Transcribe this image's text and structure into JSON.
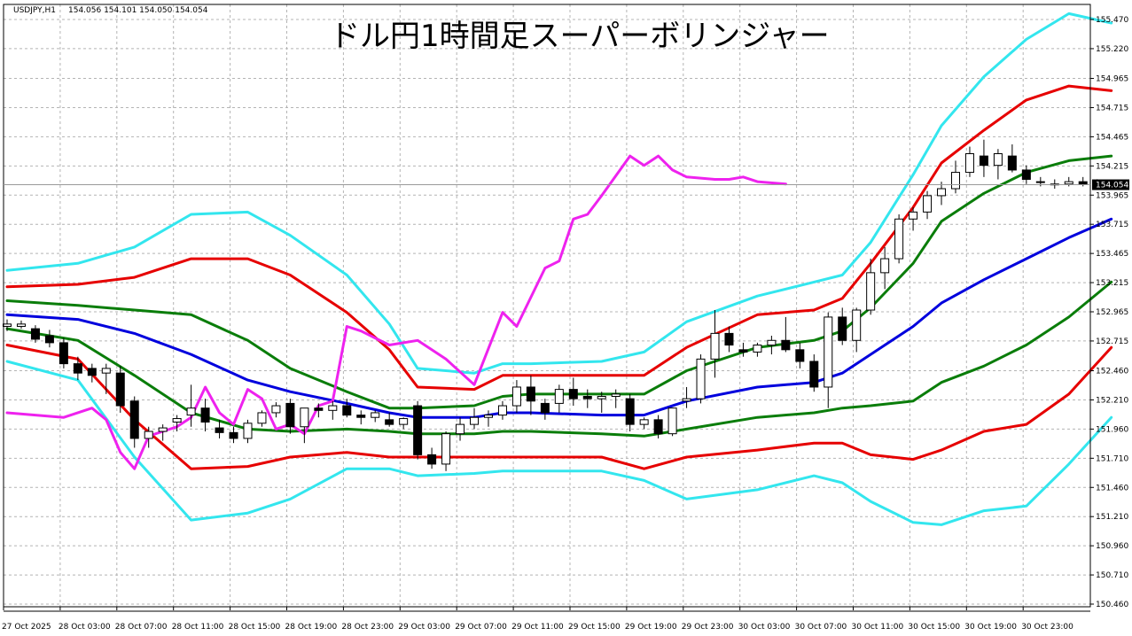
{
  "header": {
    "symbol": "USDJPY,H1",
    "ohlc": "154.056 154.101 154.050 154.054"
  },
  "title": "ドル円1時間足スーパーボリンジャー",
  "current_price": {
    "label": "154.054",
    "value": 154.054
  },
  "colors": {
    "background": "#ffffff",
    "grid": "#b4b4b4",
    "candle": "#000000",
    "sma": "#0000dd",
    "band_1sigma": "#0a7d0a",
    "band_2sigma": "#e60000",
    "band_3sigma": "#33e6ee",
    "chikou": "#ee22ee",
    "price_tag_bg": "#000000"
  },
  "chart_data": {
    "type": "line",
    "ylim": [
      150.35,
      155.58
    ],
    "y_ticks": [
      "155.470",
      "155.220",
      "154.965",
      "154.715",
      "154.465",
      "154.215",
      "153.965",
      "153.715",
      "153.465",
      "153.215",
      "152.965",
      "152.715",
      "152.460",
      "152.210",
      "151.960",
      "151.710",
      "151.460",
      "151.210",
      "150.960",
      "150.710",
      "150.460"
    ],
    "x_ticks": [
      "27 Oct 2025",
      "28 Oct 03:00",
      "28 Oct 07:00",
      "28 Oct 11:00",
      "28 Oct 15:00",
      "28 Oct 19:00",
      "28 Oct 23:00",
      "29 Oct 03:00",
      "29 Oct 07:00",
      "29 Oct 11:00",
      "29 Oct 15:00",
      "29 Oct 19:00",
      "29 Oct 23:00",
      "30 Oct 03:00",
      "30 Oct 07:00",
      "30 Oct 11:00",
      "30 Oct 15:00",
      "30 Oct 19:00",
      "30 Oct 23:00"
    ],
    "candles": [
      {
        "o": 152.84,
        "h": 152.9,
        "l": 152.8,
        "c": 152.86
      },
      {
        "o": 152.84,
        "h": 152.89,
        "l": 152.82,
        "c": 152.86
      },
      {
        "o": 152.82,
        "h": 152.85,
        "l": 152.7,
        "c": 152.73
      },
      {
        "o": 152.76,
        "h": 152.81,
        "l": 152.66,
        "c": 152.7
      },
      {
        "o": 152.7,
        "h": 152.74,
        "l": 152.48,
        "c": 152.52
      },
      {
        "o": 152.52,
        "h": 152.58,
        "l": 152.38,
        "c": 152.44
      },
      {
        "o": 152.48,
        "h": 152.52,
        "l": 152.36,
        "c": 152.42
      },
      {
        "o": 152.44,
        "h": 152.52,
        "l": 152.26,
        "c": 152.48
      },
      {
        "o": 152.44,
        "h": 152.5,
        "l": 152.1,
        "c": 152.16
      },
      {
        "o": 152.2,
        "h": 152.24,
        "l": 151.8,
        "c": 151.88
      },
      {
        "o": 151.88,
        "h": 151.98,
        "l": 151.8,
        "c": 151.94
      },
      {
        "o": 151.94,
        "h": 152.0,
        "l": 151.86,
        "c": 151.97
      },
      {
        "o": 152.02,
        "h": 152.08,
        "l": 151.94,
        "c": 152.05
      },
      {
        "o": 152.08,
        "h": 152.34,
        "l": 151.98,
        "c": 152.14
      },
      {
        "o": 152.14,
        "h": 152.22,
        "l": 151.94,
        "c": 152.02
      },
      {
        "o": 151.97,
        "h": 152.04,
        "l": 151.88,
        "c": 151.93
      },
      {
        "o": 151.93,
        "h": 151.98,
        "l": 151.84,
        "c": 151.88
      },
      {
        "o": 151.88,
        "h": 152.04,
        "l": 151.84,
        "c": 152.01
      },
      {
        "o": 152.01,
        "h": 152.12,
        "l": 151.98,
        "c": 152.1
      },
      {
        "o": 152.1,
        "h": 152.19,
        "l": 152.06,
        "c": 152.16
      },
      {
        "o": 152.18,
        "h": 152.22,
        "l": 151.92,
        "c": 151.98
      },
      {
        "o": 151.98,
        "h": 152.14,
        "l": 151.84,
        "c": 152.14
      },
      {
        "o": 152.14,
        "h": 152.18,
        "l": 152.06,
        "c": 152.12
      },
      {
        "o": 152.12,
        "h": 152.2,
        "l": 152.04,
        "c": 152.16
      },
      {
        "o": 152.16,
        "h": 152.22,
        "l": 152.06,
        "c": 152.08
      },
      {
        "o": 152.08,
        "h": 152.12,
        "l": 152.0,
        "c": 152.06
      },
      {
        "o": 152.06,
        "h": 152.12,
        "l": 152.02,
        "c": 152.1
      },
      {
        "o": 152.04,
        "h": 152.1,
        "l": 151.98,
        "c": 152.0
      },
      {
        "o": 152.0,
        "h": 152.06,
        "l": 151.96,
        "c": 152.05
      },
      {
        "o": 152.16,
        "h": 152.2,
        "l": 151.7,
        "c": 151.74
      },
      {
        "o": 151.74,
        "h": 151.8,
        "l": 151.62,
        "c": 151.66
      },
      {
        "o": 151.66,
        "h": 151.94,
        "l": 151.6,
        "c": 151.92
      },
      {
        "o": 151.92,
        "h": 152.06,
        "l": 151.86,
        "c": 152.0
      },
      {
        "o": 152.0,
        "h": 152.14,
        "l": 151.96,
        "c": 152.06
      },
      {
        "o": 152.06,
        "h": 152.12,
        "l": 151.98,
        "c": 152.08
      },
      {
        "o": 152.08,
        "h": 152.2,
        "l": 152.04,
        "c": 152.16
      },
      {
        "o": 152.16,
        "h": 152.38,
        "l": 152.1,
        "c": 152.32
      },
      {
        "o": 152.32,
        "h": 152.42,
        "l": 152.08,
        "c": 152.2
      },
      {
        "o": 152.18,
        "h": 152.22,
        "l": 152.04,
        "c": 152.1
      },
      {
        "o": 152.18,
        "h": 152.34,
        "l": 152.1,
        "c": 152.3
      },
      {
        "o": 152.3,
        "h": 152.4,
        "l": 152.16,
        "c": 152.22
      },
      {
        "o": 152.24,
        "h": 152.3,
        "l": 152.14,
        "c": 152.22
      },
      {
        "o": 152.22,
        "h": 152.28,
        "l": 152.1,
        "c": 152.24
      },
      {
        "o": 152.24,
        "h": 152.3,
        "l": 152.14,
        "c": 152.26
      },
      {
        "o": 152.22,
        "h": 152.26,
        "l": 151.94,
        "c": 152.0
      },
      {
        "o": 152.0,
        "h": 152.06,
        "l": 151.96,
        "c": 152.04
      },
      {
        "o": 152.04,
        "h": 152.08,
        "l": 151.88,
        "c": 151.92
      },
      {
        "o": 151.92,
        "h": 152.14,
        "l": 151.9,
        "c": 152.14
      },
      {
        "o": 152.2,
        "h": 152.32,
        "l": 152.14,
        "c": 152.22
      },
      {
        "o": 152.22,
        "h": 152.6,
        "l": 152.18,
        "c": 152.56
      },
      {
        "o": 152.56,
        "h": 152.98,
        "l": 152.4,
        "c": 152.78
      },
      {
        "o": 152.78,
        "h": 152.84,
        "l": 152.62,
        "c": 152.68
      },
      {
        "o": 152.64,
        "h": 152.7,
        "l": 152.58,
        "c": 152.62
      },
      {
        "o": 152.62,
        "h": 152.7,
        "l": 152.58,
        "c": 152.68
      },
      {
        "o": 152.68,
        "h": 152.76,
        "l": 152.6,
        "c": 152.72
      },
      {
        "o": 152.72,
        "h": 152.92,
        "l": 152.62,
        "c": 152.64
      },
      {
        "o": 152.64,
        "h": 152.7,
        "l": 152.48,
        "c": 152.54
      },
      {
        "o": 152.54,
        "h": 152.6,
        "l": 152.28,
        "c": 152.32
      },
      {
        "o": 152.32,
        "h": 152.96,
        "l": 152.14,
        "c": 152.92
      },
      {
        "o": 152.92,
        "h": 153.0,
        "l": 152.68,
        "c": 152.72
      },
      {
        "o": 152.72,
        "h": 153.0,
        "l": 152.62,
        "c": 152.98
      },
      {
        "o": 152.98,
        "h": 153.42,
        "l": 152.94,
        "c": 153.3
      },
      {
        "o": 153.3,
        "h": 153.52,
        "l": 153.16,
        "c": 153.42
      },
      {
        "o": 153.42,
        "h": 153.8,
        "l": 153.38,
        "c": 153.76
      },
      {
        "o": 153.76,
        "h": 153.86,
        "l": 153.66,
        "c": 153.82
      },
      {
        "o": 153.82,
        "h": 154.0,
        "l": 153.76,
        "c": 153.96
      },
      {
        "o": 153.96,
        "h": 154.08,
        "l": 153.88,
        "c": 154.02
      },
      {
        "o": 154.02,
        "h": 154.26,
        "l": 153.98,
        "c": 154.16
      },
      {
        "o": 154.16,
        "h": 154.38,
        "l": 154.12,
        "c": 154.32
      },
      {
        "o": 154.3,
        "h": 154.44,
        "l": 154.12,
        "c": 154.22
      },
      {
        "o": 154.22,
        "h": 154.36,
        "l": 154.1,
        "c": 154.32
      },
      {
        "o": 154.3,
        "h": 154.4,
        "l": 154.16,
        "c": 154.18
      },
      {
        "o": 154.18,
        "h": 154.22,
        "l": 154.06,
        "c": 154.1
      },
      {
        "o": 154.08,
        "h": 154.12,
        "l": 154.04,
        "c": 154.08
      },
      {
        "o": 154.06,
        "h": 154.1,
        "l": 154.02,
        "c": 154.06
      },
      {
        "o": 154.06,
        "h": 154.12,
        "l": 154.04,
        "c": 154.08
      },
      {
        "o": 154.08,
        "h": 154.12,
        "l": 154.04,
        "c": 154.06
      },
      {
        "o": 154.056,
        "h": 154.101,
        "l": 154.05,
        "c": 154.054
      }
    ],
    "series": [
      {
        "role": "band_3sigma_upper",
        "x": [
          0,
          5,
          9,
          13,
          17,
          20,
          24,
          27,
          29,
          33,
          35,
          37,
          42,
          45,
          48,
          53,
          57,
          59,
          61,
          64,
          66,
          69,
          72,
          75,
          78
        ],
        "y": [
          153.32,
          153.38,
          153.52,
          153.8,
          153.82,
          153.62,
          153.28,
          152.86,
          152.48,
          152.44,
          152.52,
          152.52,
          152.54,
          152.62,
          152.88,
          153.1,
          153.22,
          153.28,
          153.56,
          154.14,
          154.56,
          154.98,
          155.3,
          155.52,
          155.44
        ]
      },
      {
        "role": "band_2sigma_upper",
        "x": [
          0,
          5,
          9,
          13,
          17,
          20,
          24,
          27,
          29,
          33,
          35,
          37,
          42,
          45,
          48,
          53,
          57,
          59,
          61,
          64,
          66,
          69,
          72,
          75,
          78
        ],
        "y": [
          153.18,
          153.2,
          153.26,
          153.42,
          153.42,
          153.28,
          152.96,
          152.64,
          152.32,
          152.3,
          152.42,
          152.42,
          152.42,
          152.42,
          152.66,
          152.94,
          152.98,
          153.08,
          153.38,
          153.86,
          154.24,
          154.52,
          154.78,
          154.9,
          154.86
        ]
      },
      {
        "role": "band_1sigma_upper",
        "x": [
          0,
          5,
          9,
          13,
          17,
          20,
          24,
          27,
          29,
          33,
          35,
          37,
          42,
          45,
          48,
          53,
          57,
          59,
          61,
          64,
          66,
          69,
          72,
          75,
          78
        ],
        "y": [
          153.06,
          153.02,
          152.98,
          152.94,
          152.72,
          152.48,
          152.28,
          152.14,
          152.14,
          152.16,
          152.24,
          152.26,
          152.26,
          152.26,
          152.46,
          152.66,
          152.72,
          152.8,
          153.0,
          153.38,
          153.74,
          153.98,
          154.16,
          154.26,
          154.3
        ]
      },
      {
        "role": "sma",
        "x": [
          0,
          5,
          9,
          13,
          17,
          20,
          24,
          27,
          29,
          33,
          35,
          37,
          42,
          45,
          48,
          53,
          57,
          59,
          61,
          64,
          66,
          69,
          72,
          75,
          78
        ],
        "y": [
          152.94,
          152.9,
          152.78,
          152.6,
          152.38,
          152.28,
          152.18,
          152.1,
          152.06,
          152.06,
          152.1,
          152.1,
          152.08,
          152.08,
          152.2,
          152.32,
          152.36,
          152.44,
          152.6,
          152.84,
          153.04,
          153.24,
          153.42,
          153.6,
          153.76
        ]
      },
      {
        "role": "band_1sigma_lower",
        "x": [
          0,
          5,
          9,
          13,
          17,
          20,
          24,
          27,
          29,
          33,
          35,
          37,
          42,
          45,
          48,
          53,
          57,
          59,
          61,
          64,
          66,
          69,
          72,
          75,
          78
        ],
        "y": [
          152.82,
          152.72,
          152.42,
          152.1,
          151.96,
          151.94,
          151.96,
          151.94,
          151.92,
          151.92,
          151.94,
          151.94,
          151.92,
          151.9,
          151.96,
          152.06,
          152.1,
          152.14,
          152.16,
          152.2,
          152.36,
          152.5,
          152.68,
          152.92,
          153.22
        ]
      },
      {
        "role": "band_2sigma_lower",
        "x": [
          0,
          5,
          9,
          13,
          17,
          20,
          24,
          27,
          29,
          33,
          35,
          37,
          42,
          45,
          48,
          53,
          57,
          59,
          61,
          64,
          66,
          69,
          72,
          75,
          78
        ],
        "y": [
          152.68,
          152.56,
          152.04,
          151.62,
          151.64,
          151.72,
          151.76,
          151.72,
          151.72,
          151.72,
          151.72,
          151.72,
          151.72,
          151.62,
          151.72,
          151.78,
          151.84,
          151.84,
          151.74,
          151.7,
          151.78,
          151.94,
          152.0,
          152.26,
          152.66
        ]
      },
      {
        "role": "band_3sigma_lower",
        "x": [
          0,
          5,
          9,
          13,
          17,
          20,
          24,
          27,
          29,
          33,
          35,
          37,
          42,
          45,
          48,
          53,
          57,
          59,
          61,
          64,
          66,
          69,
          72,
          75,
          78
        ],
        "y": [
          152.54,
          152.38,
          151.72,
          151.18,
          151.24,
          151.36,
          151.62,
          151.62,
          151.56,
          151.58,
          151.6,
          151.6,
          151.6,
          151.52,
          151.36,
          151.44,
          151.56,
          151.5,
          151.34,
          151.16,
          151.14,
          151.26,
          151.3,
          151.66,
          152.06
        ]
      },
      {
        "role": "chikou",
        "x": [
          0,
          2,
          4,
          6,
          7,
          8,
          9,
          10,
          11,
          12,
          13,
          14,
          15,
          16,
          17,
          18,
          19,
          20,
          21,
          22,
          23,
          24,
          25,
          26,
          27,
          29,
          31,
          33,
          35,
          36,
          38,
          39,
          40,
          41,
          42,
          44,
          45,
          46,
          47,
          48,
          50,
          51,
          52,
          53,
          55
        ],
        "y": [
          152.1,
          152.08,
          152.06,
          152.14,
          152.04,
          151.76,
          151.62,
          151.9,
          151.94,
          151.98,
          152.06,
          152.32,
          152.1,
          152.0,
          152.3,
          152.22,
          151.96,
          152.0,
          151.92,
          152.16,
          152.2,
          152.84,
          152.8,
          152.74,
          152.68,
          152.72,
          152.56,
          152.34,
          152.96,
          152.84,
          153.34,
          153.4,
          153.76,
          153.8,
          153.96,
          154.3,
          154.22,
          154.3,
          154.18,
          154.12,
          154.1,
          154.1,
          154.12,
          154.08,
          154.06
        ]
      }
    ]
  }
}
